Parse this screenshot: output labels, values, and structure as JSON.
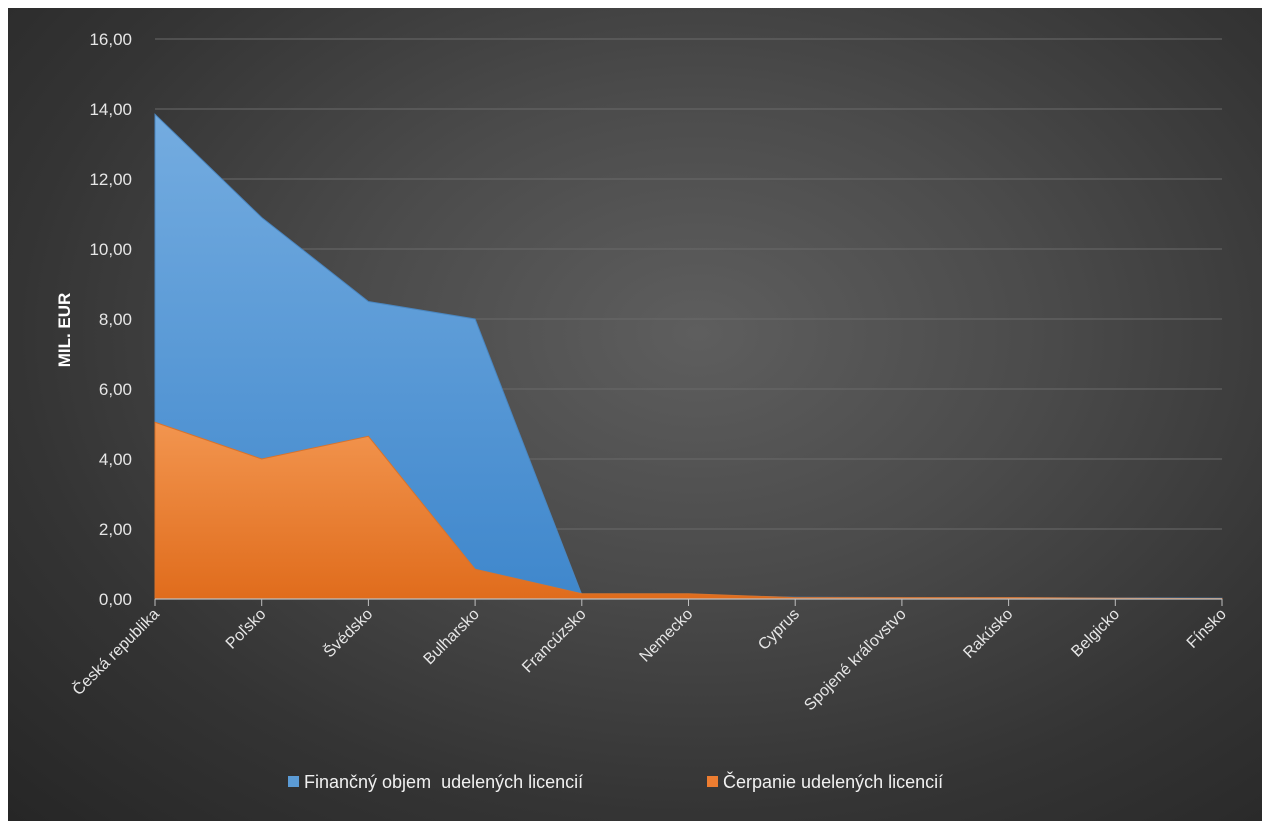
{
  "chart_data": {
    "type": "area",
    "categories": [
      "Česká republika",
      "Poľsko",
      "Švédsko",
      "Bulharsko",
      "Francúzsko",
      "Nemecko",
      "Cyprus",
      "Spojené kráľovstvo",
      "Rakúsko",
      "Belgicko",
      "Fínsko"
    ],
    "series": [
      {
        "name": "Finančný objem  udelených licencií",
        "color": "#5b9bd5",
        "values": [
          13.85,
          10.9,
          8.5,
          8.0,
          0.12,
          0.12,
          0.05,
          0.04,
          0.04,
          0.03,
          0.02
        ]
      },
      {
        "name": "Čerpanie udelených licencií",
        "color": "#ed7d31",
        "values": [
          5.05,
          4.0,
          4.65,
          0.85,
          0.15,
          0.15,
          0.04,
          0.04,
          0.04,
          0.02,
          0.01
        ]
      }
    ],
    "ylabel": "MIL. EUR",
    "ylim": [
      0,
      16
    ],
    "yticks": [
      "0,00",
      "2,00",
      "4,00",
      "6,00",
      "8,00",
      "10,00",
      "12,00",
      "14,00",
      "16,00"
    ],
    "grid": true,
    "legend": "bottom"
  }
}
